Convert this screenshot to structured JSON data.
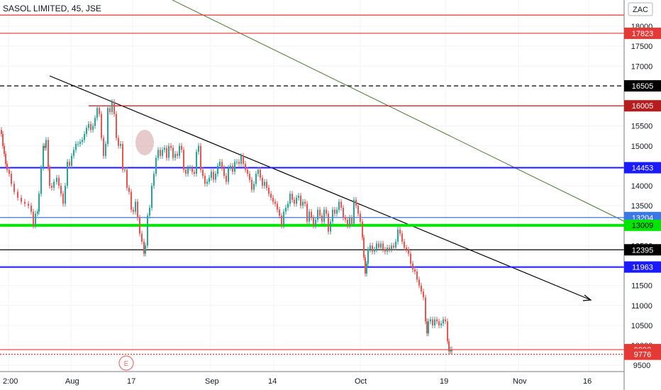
{
  "header": {
    "title": "SASOL LIMITED, 45, JSE"
  },
  "currency_badge": "ZAC",
  "chart_data": {
    "type": "candlestick",
    "y_ticks": [
      18000,
      17500,
      17000,
      16500,
      16000,
      15500,
      15000,
      14500,
      14000,
      13500,
      13000,
      12500,
      12000,
      11500,
      11000,
      10500,
      10000,
      9500
    ],
    "x_ticks": [
      {
        "label": "2:00"
      },
      {
        "label": "Aug"
      },
      {
        "label": "17"
      },
      {
        "label": "Sep"
      },
      {
        "label": "14"
      },
      {
        "label": "Oct"
      },
      {
        "label": "19"
      },
      {
        "label": "Nov"
      },
      {
        "label": "16"
      }
    ],
    "horizontal_levels": [
      {
        "value": 18280,
        "label": "",
        "color": "#e53935",
        "style": "solid"
      },
      {
        "value": 17823,
        "label": "17823",
        "color": "#e53935",
        "style": "solid"
      },
      {
        "value": 16505,
        "label": "16505",
        "color": "#000000",
        "style": "dashed"
      },
      {
        "value": 16005,
        "label": "16005",
        "color": "#b71c1c",
        "style": "solid"
      },
      {
        "value": 14453,
        "label": "14453",
        "color": "#1a1aff",
        "style": "solid"
      },
      {
        "value": 13204,
        "label": "13204",
        "color": "#3b78e7",
        "style": "solid"
      },
      {
        "value": 13009,
        "label": "13009",
        "color": "#00e600",
        "style": "solid"
      },
      {
        "value": 12395,
        "label": "12395",
        "color": "#000000",
        "style": "solid"
      },
      {
        "value": 11963,
        "label": "11963",
        "color": "#1a1aff",
        "style": "solid"
      },
      {
        "value": 9892,
        "label": "9892",
        "color": "#e53935",
        "style": "solid"
      },
      {
        "value": 9776,
        "label": "9776",
        "color": "#e53935",
        "style": "dotted"
      }
    ],
    "event_marker": "E",
    "price_series": [
      [
        0,
        15400
      ],
      [
        2,
        15300
      ],
      [
        4,
        15000
      ],
      [
        6,
        14800
      ],
      [
        8,
        14550
      ],
      [
        10,
        14400
      ],
      [
        13,
        14300
      ],
      [
        16,
        14050
      ],
      [
        20,
        13850
      ],
      [
        25,
        13700
      ],
      [
        30,
        13600
      ],
      [
        35,
        13550
      ],
      [
        40,
        13500
      ],
      [
        44,
        13350
      ],
      [
        47,
        13000
      ],
      [
        50,
        13300
      ],
      [
        53,
        13350
      ],
      [
        55,
        13800
      ],
      [
        58,
        14450
      ],
      [
        61,
        15000
      ],
      [
        63,
        14950
      ],
      [
        65,
        15150
      ],
      [
        68,
        14450
      ],
      [
        70,
        14000
      ],
      [
        73,
        13950
      ],
      [
        76,
        14100
      ],
      [
        80,
        14200
      ],
      [
        83,
        14000
      ],
      [
        86,
        13800
      ],
      [
        89,
        13550
      ],
      [
        92,
        14000
      ],
      [
        95,
        14600
      ],
      [
        98,
        14500
      ],
      [
        101,
        14750
      ],
      [
        104,
        14900
      ],
      [
        107,
        15050
      ],
      [
        110,
        15050
      ],
      [
        113,
        15100
      ],
      [
        116,
        15150
      ],
      [
        119,
        15300
      ],
      [
        122,
        15450
      ],
      [
        125,
        15550
      ],
      [
        128,
        15400
      ],
      [
        131,
        15500
      ],
      [
        134,
        15700
      ],
      [
        137,
        15950
      ],
      [
        140,
        15800
      ],
      [
        143,
        15200
      ],
      [
        146,
        14750
      ],
      [
        149,
        15050
      ],
      [
        152,
        15950
      ],
      [
        155,
        15850
      ],
      [
        158,
        16100
      ],
      [
        161,
        15800
      ],
      [
        164,
        15200
      ],
      [
        167,
        15000
      ],
      [
        170,
        15050
      ],
      [
        173,
        14400
      ],
      [
        176,
        14400
      ],
      [
        179,
        13950
      ],
      [
        182,
        13850
      ],
      [
        185,
        13400
      ],
      [
        188,
        13350
      ],
      [
        191,
        13600
      ],
      [
        194,
        13200
      ],
      [
        197,
        12800
      ],
      [
        200,
        12600
      ],
      [
        203,
        12300
      ],
      [
        205,
        12500
      ],
      [
        208,
        13250
      ],
      [
        211,
        13450
      ],
      [
        214,
        14000
      ],
      [
        217,
        14300
      ],
      [
        220,
        14700
      ],
      [
        223,
        14900
      ],
      [
        226,
        14750
      ],
      [
        229,
        14900
      ],
      [
        232,
        14950
      ],
      [
        235,
        14700
      ],
      [
        238,
        15000
      ],
      [
        241,
        14950
      ],
      [
        244,
        14700
      ],
      [
        247,
        14800
      ],
      [
        250,
        14750
      ],
      [
        253,
        15000
      ],
      [
        256,
        14900
      ],
      [
        259,
        14400
      ],
      [
        262,
        14300
      ],
      [
        265,
        14450
      ],
      [
        268,
        14450
      ],
      [
        271,
        14350
      ],
      [
        274,
        14300
      ],
      [
        277,
        14850
      ],
      [
        280,
        15000
      ],
      [
        283,
        14400
      ],
      [
        286,
        14250
      ],
      [
        289,
        14050
      ],
      [
        292,
        14100
      ],
      [
        295,
        14200
      ],
      [
        298,
        14350
      ],
      [
        301,
        14150
      ],
      [
        304,
        14300
      ],
      [
        307,
        14500
      ],
      [
        310,
        14600
      ],
      [
        313,
        14450
      ],
      [
        316,
        14250
      ],
      [
        319,
        14100
      ],
      [
        322,
        14450
      ],
      [
        325,
        14500
      ],
      [
        328,
        14350
      ],
      [
        331,
        14600
      ],
      [
        334,
        14600
      ],
      [
        337,
        14550
      ],
      [
        340,
        14750
      ],
      [
        343,
        14550
      ],
      [
        346,
        14400
      ],
      [
        349,
        14300
      ],
      [
        352,
        14150
      ],
      [
        355,
        13900
      ],
      [
        358,
        14050
      ],
      [
        361,
        14300
      ],
      [
        364,
        14400
      ],
      [
        367,
        14200
      ],
      [
        370,
        14000
      ],
      [
        373,
        14100
      ],
      [
        376,
        13950
      ],
      [
        379,
        13800
      ],
      [
        382,
        13700
      ],
      [
        385,
        13600
      ],
      [
        388,
        13550
      ],
      [
        391,
        13400
      ],
      [
        394,
        13250
      ],
      [
        397,
        13000
      ],
      [
        400,
        13350
      ],
      [
        403,
        13450
      ],
      [
        406,
        13550
      ],
      [
        409,
        13800
      ],
      [
        412,
        13650
      ],
      [
        415,
        13550
      ],
      [
        418,
        13700
      ],
      [
        421,
        13750
      ],
      [
        424,
        13500
      ],
      [
        427,
        13600
      ],
      [
        430,
        13550
      ],
      [
        433,
        13100
      ],
      [
        436,
        13350
      ],
      [
        439,
        13200
      ],
      [
        442,
        13000
      ],
      [
        445,
        13150
      ],
      [
        448,
        13400
      ],
      [
        451,
        13250
      ],
      [
        454,
        13100
      ],
      [
        457,
        13400
      ],
      [
        460,
        13300
      ],
      [
        463,
        12850
      ],
      [
        466,
        13100
      ],
      [
        469,
        13400
      ],
      [
        472,
        13300
      ],
      [
        475,
        13400
      ],
      [
        478,
        13600
      ],
      [
        481,
        13450
      ],
      [
        484,
        13200
      ],
      [
        487,
        13150
      ],
      [
        490,
        13000
      ],
      [
        493,
        13200
      ],
      [
        496,
        13050
      ],
      [
        499,
        13650
      ],
      [
        502,
        13500
      ],
      [
        505,
        13300
      ],
      [
        508,
        13100
      ],
      [
        511,
        12700
      ],
      [
        513,
        12200
      ],
      [
        515,
        11800
      ],
      [
        517,
        12050
      ],
      [
        519,
        12400
      ],
      [
        522,
        12500
      ],
      [
        525,
        12350
      ],
      [
        528,
        12400
      ],
      [
        531,
        12550
      ],
      [
        534,
        12450
      ],
      [
        537,
        12550
      ],
      [
        540,
        12400
      ],
      [
        543,
        12350
      ],
      [
        546,
        12450
      ],
      [
        549,
        12400
      ],
      [
        552,
        12500
      ],
      [
        555,
        12450
      ],
      [
        558,
        12600
      ],
      [
        561,
        12900
      ],
      [
        564,
        12800
      ],
      [
        567,
        12600
      ],
      [
        570,
        12450
      ],
      [
        573,
        12400
      ],
      [
        576,
        12300
      ],
      [
        579,
        12050
      ],
      [
        582,
        11900
      ],
      [
        585,
        11850
      ],
      [
        588,
        11650
      ],
      [
        591,
        11500
      ],
      [
        594,
        11350
      ],
      [
        597,
        11200
      ],
      [
        600,
        10600
      ],
      [
        602,
        10300
      ],
      [
        604,
        10600
      ],
      [
        607,
        10650
      ],
      [
        610,
        10500
      ],
      [
        613,
        10650
      ],
      [
        616,
        10600
      ],
      [
        619,
        10500
      ],
      [
        622,
        10550
      ],
      [
        625,
        10650
      ],
      [
        628,
        10600
      ],
      [
        631,
        10100
      ],
      [
        633,
        9850
      ],
      [
        635,
        9900
      ],
      [
        637,
        9850
      ]
    ]
  }
}
